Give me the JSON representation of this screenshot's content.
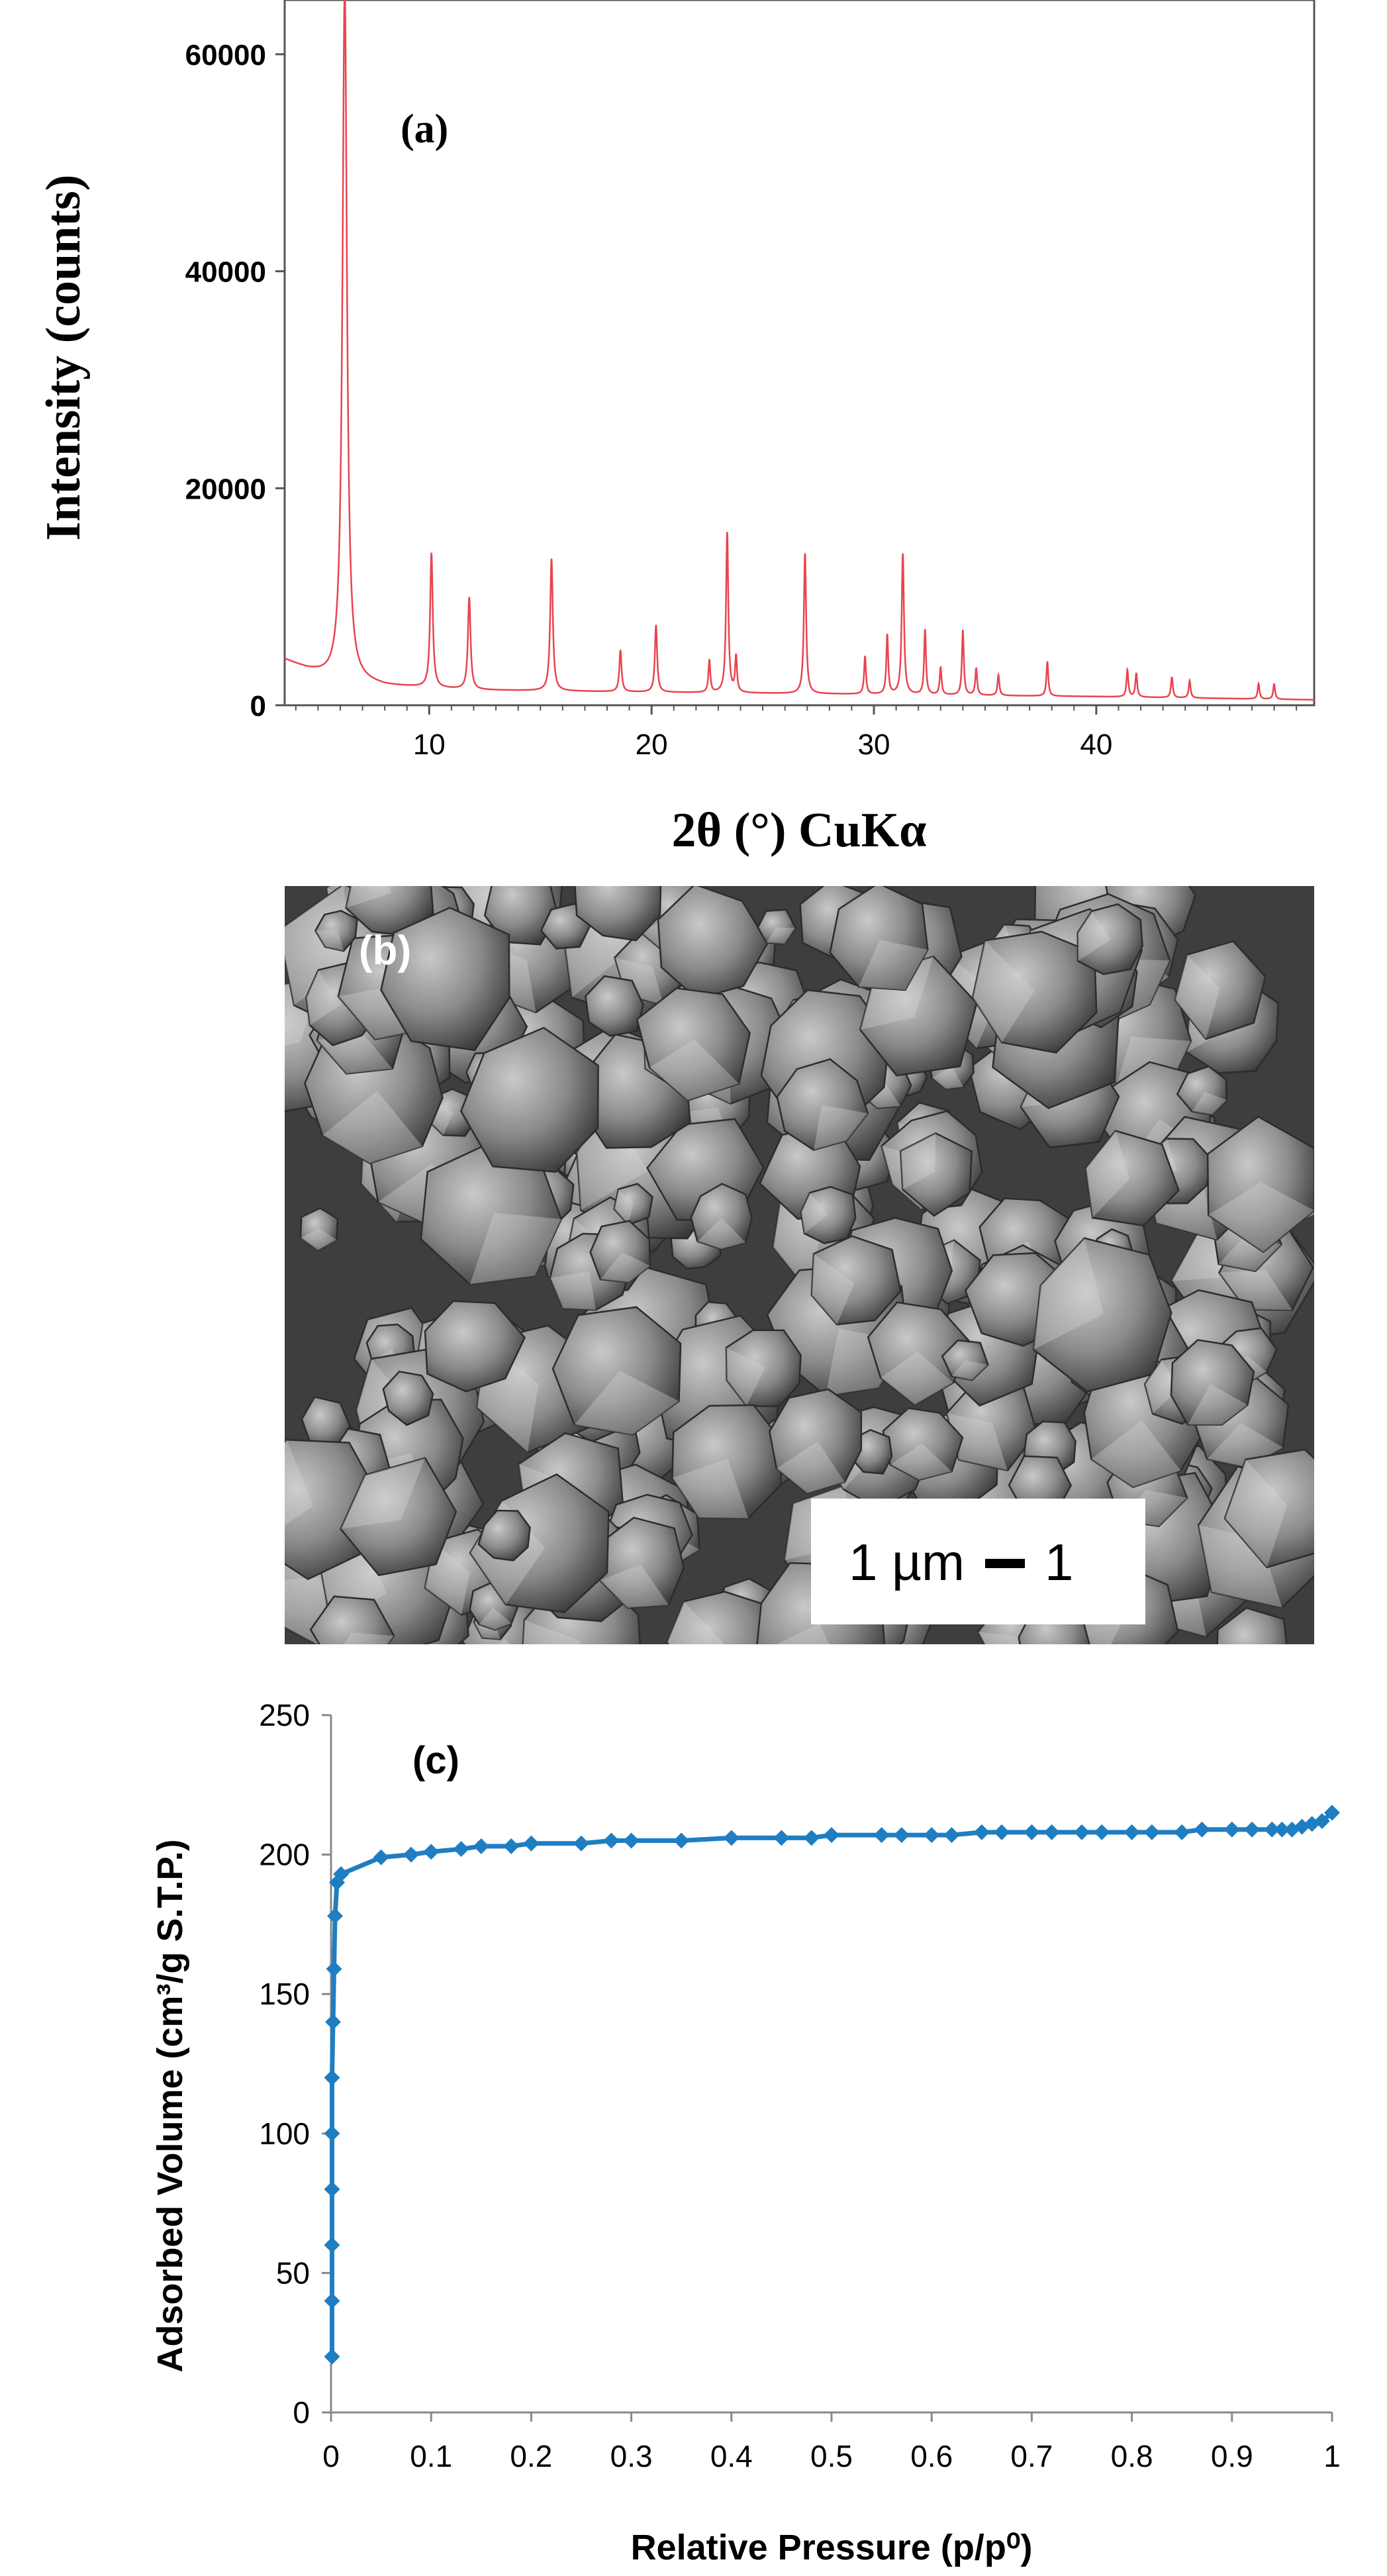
{
  "panels": {
    "a": "(a)",
    "b": "(b)",
    "c": "(c)"
  },
  "scale_bar": {
    "label": "1 µm",
    "suffix": "1"
  },
  "colors": {
    "xrd_line": "#e8454f",
    "bet_line": "#1f7ec2",
    "bet_marker": "#1f7ec2"
  },
  "chart_data": [
    {
      "id": "xrd",
      "type": "line",
      "title": "",
      "xlabel": "2θ (°) CuKα",
      "ylabel": "Intensity (counts)",
      "xlim": [
        3.5,
        49.8
      ],
      "ylim": [
        0,
        65000
      ],
      "xticks": [
        10,
        20,
        30,
        40
      ],
      "yticks": [
        0,
        20000,
        40000,
        60000
      ],
      "grid": false,
      "baseline": [
        [
          3.5,
          4200
        ],
        [
          4.5,
          3300
        ],
        [
          5.5,
          2600
        ],
        [
          8,
          1800
        ],
        [
          12,
          1400
        ],
        [
          20,
          1200
        ],
        [
          30,
          1000
        ],
        [
          40,
          800
        ],
        [
          49.8,
          500
        ]
      ],
      "peaks": [
        {
          "x": 6.2,
          "y": 64000,
          "w": 0.12
        },
        {
          "x": 10.1,
          "y": 12400,
          "w": 0.07
        },
        {
          "x": 11.8,
          "y": 8500,
          "w": 0.07
        },
        {
          "x": 15.5,
          "y": 12200,
          "w": 0.07
        },
        {
          "x": 18.6,
          "y": 3800,
          "w": 0.06
        },
        {
          "x": 20.2,
          "y": 6200,
          "w": 0.06
        },
        {
          "x": 22.6,
          "y": 3000,
          "w": 0.05
        },
        {
          "x": 23.4,
          "y": 14800,
          "w": 0.06
        },
        {
          "x": 23.8,
          "y": 3300,
          "w": 0.05
        },
        {
          "x": 26.9,
          "y": 13000,
          "w": 0.06
        },
        {
          "x": 29.6,
          "y": 3500,
          "w": 0.05
        },
        {
          "x": 30.6,
          "y": 5500,
          "w": 0.05
        },
        {
          "x": 31.3,
          "y": 13000,
          "w": 0.06
        },
        {
          "x": 32.3,
          "y": 6000,
          "w": 0.05
        },
        {
          "x": 33.0,
          "y": 2500,
          "w": 0.05
        },
        {
          "x": 34.0,
          "y": 6000,
          "w": 0.05
        },
        {
          "x": 34.6,
          "y": 2500,
          "w": 0.05
        },
        {
          "x": 35.6,
          "y": 1900,
          "w": 0.05
        },
        {
          "x": 37.8,
          "y": 3200,
          "w": 0.05
        },
        {
          "x": 41.4,
          "y": 2500,
          "w": 0.05
        },
        {
          "x": 41.8,
          "y": 2200,
          "w": 0.05
        },
        {
          "x": 43.4,
          "y": 1900,
          "w": 0.05
        },
        {
          "x": 44.2,
          "y": 1600,
          "w": 0.05
        },
        {
          "x": 47.3,
          "y": 1400,
          "w": 0.05
        },
        {
          "x": 48.0,
          "y": 1400,
          "w": 0.05
        }
      ]
    },
    {
      "id": "bet",
      "type": "line",
      "title": "",
      "xlabel": "Relative Pressure (p/p⁰)",
      "ylabel": "Adsorbed Volume (cm³/g S.T.P.)",
      "xlim": [
        0,
        1
      ],
      "ylim": [
        0,
        250
      ],
      "xticks": [
        0,
        0.1,
        0.2,
        0.3,
        0.4,
        0.5,
        0.6,
        0.7,
        0.8,
        0.9,
        1
      ],
      "xtick_labels": [
        "0",
        "0.1",
        "0.2",
        "0.3",
        "0.4",
        "0.5",
        "0.6",
        "0.7",
        "0.8",
        "0.9",
        "1"
      ],
      "yticks": [
        0,
        50,
        100,
        150,
        200,
        250
      ],
      "grid": false,
      "x": [
        0.001,
        0.001,
        0.001,
        0.001,
        0.001,
        0.001,
        0.002,
        0.003,
        0.004,
        0.006,
        0.01,
        0.05,
        0.08,
        0.1,
        0.13,
        0.15,
        0.18,
        0.2,
        0.25,
        0.28,
        0.3,
        0.35,
        0.4,
        0.45,
        0.48,
        0.5,
        0.55,
        0.57,
        0.6,
        0.62,
        0.65,
        0.67,
        0.7,
        0.72,
        0.75,
        0.77,
        0.8,
        0.82,
        0.85,
        0.87,
        0.9,
        0.92,
        0.94,
        0.95,
        0.96,
        0.97,
        0.98,
        0.99,
        1.0
      ],
      "y": [
        20,
        40,
        60,
        80,
        100,
        120,
        140,
        159,
        178,
        190,
        193,
        199,
        200,
        201,
        202,
        203,
        203,
        204,
        204,
        205,
        205,
        205,
        206,
        206,
        206,
        207,
        207,
        207,
        207,
        207,
        208,
        208,
        208,
        208,
        208,
        208,
        208,
        208,
        208,
        209,
        209,
        209,
        209,
        209,
        209,
        210,
        211,
        212,
        215
      ]
    }
  ]
}
